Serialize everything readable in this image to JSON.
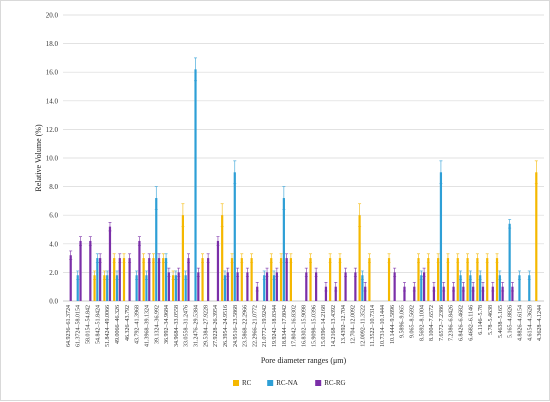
{
  "chart_data": {
    "type": "bar",
    "title": "",
    "xlabel": "Pore diameter ranges (μm)",
    "ylabel": "Relative Volume (%)",
    "ylim": [
      0,
      20
    ],
    "yticks": [
      "0.0",
      "2.0",
      "4.0",
      "6.0",
      "8.0",
      "10.0",
      "12.0",
      "14.0",
      "16.0",
      "18.0",
      "20.0"
    ],
    "grid": "horizontal",
    "legend_position": "bottom",
    "error_bars": true,
    "colors": {
      "RC": "#f5b800",
      "RC-NA": "#2e9fd6",
      "RC-RG": "#7b2fa8"
    },
    "categories": [
      "64.9236–61.3724",
      "61.3724–58.0154",
      "58.0154–54.842",
      "54.842–51.8424",
      "51.8424–49.0066",
      "49.0066–46.326",
      "46.326–43.792",
      "43.792–41.3968",
      "41.3968–39.1324",
      "39.1324–36.992",
      "36.992–34.9684",
      "34.9684–33.0558",
      "33.0558–31.2476",
      "31.2476–29.5384",
      "29.5384–27.9228",
      "27.9228–26.3954",
      "26.3954–24.9516",
      "24.9516–23.5868",
      "23.5868–22.2966",
      "22.2966–21.0772",
      "21.0772–19.9242",
      "19.9242–18.8344",
      "18.8344–17.8042",
      "17.8042–16.8302",
      "16.8302–15.9098",
      "15.9098–15.0396",
      "15.0396–14.2168",
      "14.2168–13.4392",
      "13.4392–12.704",
      "12.704–12.0092",
      "12.0092–11.3522",
      "11.3522–10.7314",
      "10.7314–10.1444",
      "10.1444–9.5896",
      "9.5896–9.065",
      "9.065–8.5692",
      "8.5692–8.1004",
      "8.1004–7.6572",
      "7.6572–7.2386",
      "7.2386–6.8426",
      "6.8426–6.4682",
      "6.4682–6.1146",
      "6.1146–5.78",
      "5.78–5.4638",
      "5.4638–5.165",
      "5.165–4.8826",
      "4.8826–4.6154",
      "4.6154–4.3628",
      "4.3628–4.1244"
    ],
    "x_tick_labels": [
      "64.9236–61.3724",
      "61.3724–58.0154",
      "58.0154–54.842",
      "54.842–51.8424",
      "51.8424–49.0066",
      "49.0066–46.326",
      "46.326–43.792",
      "43.792–41.3968",
      "41.3968–39.1324",
      "39.1324–36.992",
      "36.992–34.9684",
      "34.9684–33.0558",
      "33.0558–31.2476",
      "31.2476–29.5384",
      "29.5384–27.9228",
      "27.9228–26.3954",
      "26.3954–24.9516",
      "24.9516–23.5868",
      "23.5868–22.2966",
      "22.2966–21.0772",
      "21.0772–19.9242",
      "19.9242–18.8344",
      "18.8344–17.8042",
      "17.8042–16.8302",
      "16.8302–15.9098",
      "15.9098–15.0396",
      "15.0396–14.2168",
      "14.2168–13.4392",
      "13.4392–12.704",
      "12.704–12.0092",
      "12.0092–11.3522",
      "11.3522–10.7314",
      "10.7314–10.1444",
      "10.1444–9.5896",
      "9.5896–9.065",
      "9.065–8.5692",
      "8.5692–8.1004",
      "8.1004–7.6572",
      "7.6572–7.2386",
      "7.2386–6.8426",
      "6.8426–6.4682",
      "6.4682–6.1146",
      "6.1146–5.78",
      "5.78–5.4638",
      "5.4638–5.165",
      "5.165–4.8826",
      "4.8826–4.6154",
      "4.6154–4.3628",
      "4.3628–4.1244"
    ],
    "series": [
      {
        "name": "RC",
        "values": [
          0,
          0,
          0,
          1.8,
          1.8,
          3.0,
          3.0,
          0,
          3.0,
          3.0,
          3.0,
          1.8,
          6.0,
          0,
          3.0,
          0,
          6.0,
          3.0,
          3.0,
          3.0,
          0,
          3.0,
          3.0,
          3.0,
          0,
          3.0,
          0,
          3.0,
          3.0,
          0,
          6.0,
          3.0,
          0,
          3.0,
          0,
          0,
          3.0,
          3.0,
          3.0,
          3.0,
          3.0,
          3.0,
          3.0,
          3.0,
          3.0,
          0,
          0,
          0,
          9.0
        ]
      },
      {
        "name": "RC-NA",
        "values": [
          0,
          1.8,
          0,
          3.0,
          1.8,
          1.8,
          0,
          1.8,
          1.8,
          7.2,
          3.0,
          1.8,
          1.8,
          16.2,
          0,
          0,
          1.8,
          9.0,
          0,
          0,
          1.8,
          1.8,
          7.2,
          0,
          0,
          0,
          0,
          0,
          0,
          0,
          1.8,
          0,
          0,
          0,
          0,
          0,
          1.8,
          0,
          9.0,
          0,
          1.8,
          1.8,
          1.8,
          0,
          1.8,
          5.4,
          1.8,
          1.8,
          0
        ]
      },
      {
        "name": "RC-RG",
        "values": [
          3.2,
          4.2,
          4.2,
          3.0,
          5.2,
          3.0,
          3.0,
          4.2,
          3.0,
          3.0,
          2.0,
          2.0,
          3.0,
          2.0,
          3.0,
          4.2,
          2.0,
          2.0,
          2.0,
          1.0,
          2.0,
          2.0,
          3.0,
          0,
          2.0,
          2.0,
          1.0,
          1.0,
          2.0,
          2.0,
          1.0,
          0,
          0,
          2.0,
          1.0,
          1.0,
          2.0,
          1.0,
          1.0,
          1.0,
          1.0,
          1.0,
          1.0,
          1.0,
          1.0,
          1.0,
          0,
          0,
          0
        ]
      }
    ]
  }
}
